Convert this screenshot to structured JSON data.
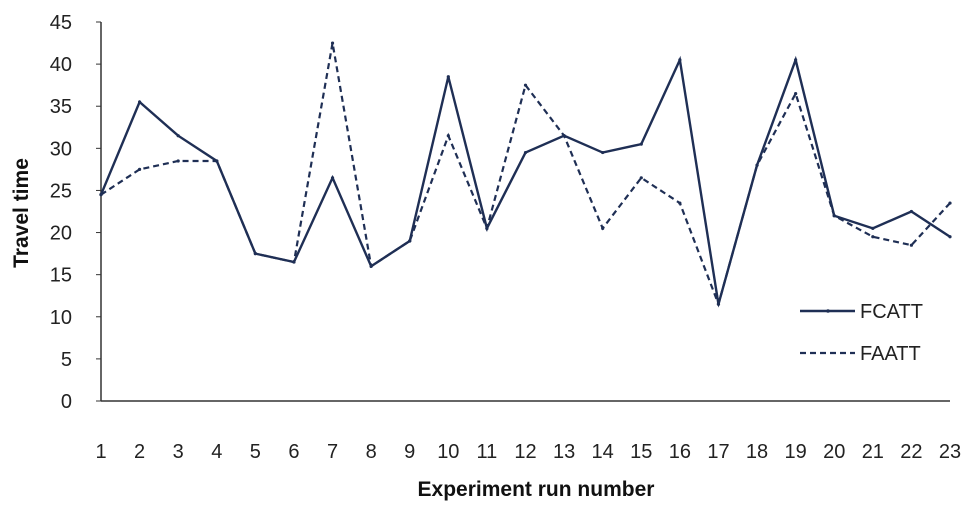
{
  "chart_data": {
    "type": "line",
    "title": "",
    "xlabel": "Experiment run number",
    "ylabel": "Travel time",
    "x": [
      1,
      2,
      3,
      4,
      5,
      6,
      7,
      8,
      9,
      10,
      11,
      12,
      13,
      14,
      15,
      16,
      17,
      18,
      19,
      20,
      21,
      22,
      23
    ],
    "ylim": [
      0,
      45
    ],
    "yticks": [
      0,
      5,
      10,
      15,
      20,
      25,
      30,
      35,
      40,
      45
    ],
    "grid": false,
    "legend_position": "right",
    "series": [
      {
        "name": "FCATT",
        "style": "solid",
        "color": "#1f2f55",
        "values": [
          24.5,
          35.5,
          31.5,
          28.5,
          17.5,
          16.5,
          26.5,
          16,
          19,
          38.5,
          20.5,
          29.5,
          31.5,
          29.5,
          30.5,
          40.5,
          11.5,
          28,
          40.5,
          22,
          20.5,
          22.5,
          19.5
        ]
      },
      {
        "name": "FAATT",
        "style": "dashed",
        "color": "#1f2f55",
        "values": [
          24.5,
          27.5,
          28.5,
          28.5,
          17.5,
          16.5,
          42.5,
          16,
          19,
          31.5,
          20.5,
          37.5,
          31.5,
          20.5,
          26.5,
          23.5,
          11.5,
          28,
          36.5,
          22,
          19.5,
          18.5,
          23.5
        ]
      }
    ]
  }
}
